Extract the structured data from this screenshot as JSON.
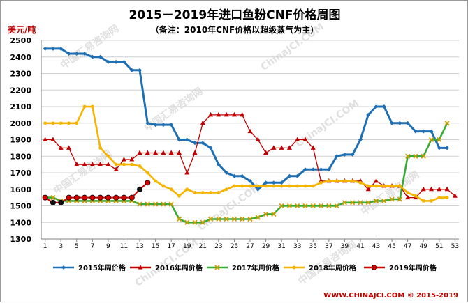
{
  "chart_data": {
    "type": "line",
    "title": "2015－2019年进口鱼粉CNF价格周图",
    "subtitle": "（备注：2010年CNF价格以超级蒸气为主）",
    "ylabel": "美元/吨",
    "ylim": [
      1300,
      2500
    ],
    "yticks": [
      "1300",
      "1400",
      "1500",
      "1600",
      "1700",
      "1800",
      "1900",
      "2000",
      "2100",
      "2200",
      "2300",
      "2400",
      "2500"
    ],
    "xlim": [
      0.5,
      53.5
    ],
    "xticks": [
      "1",
      "3",
      "5",
      "7",
      "9",
      "11",
      "13",
      "15",
      "17",
      "19",
      "21",
      "23",
      "25",
      "27",
      "29",
      "31",
      "33",
      "35",
      "37",
      "39",
      "41",
      "43",
      "45",
      "47",
      "49",
      "51",
      "53"
    ],
    "grid": true,
    "legend_position": "bottom",
    "series": [
      {
        "name": "2015年周价格",
        "color": "#1f6fb4",
        "marker": "diamond",
        "values": [
          2450,
          2450,
          2450,
          2420,
          2420,
          2420,
          2400,
          2400,
          2370,
          2370,
          2370,
          2320,
          2320,
          2000,
          1990,
          1990,
          1990,
          1900,
          1900,
          1880,
          1880,
          1850,
          1750,
          1700,
          1680,
          1680,
          1650,
          1600,
          1640,
          1640,
          1640,
          1680,
          1680,
          1720,
          1720,
          1720,
          1720,
          1800,
          1810,
          1810,
          1900,
          2050,
          2100,
          2100,
          2000,
          2000,
          2000,
          1950,
          1950,
          1950,
          1850,
          1850,
          null
        ]
      },
      {
        "name": "2016年周价格",
        "color": "#c00000",
        "marker": "triangle",
        "values": [
          1900,
          1900,
          1850,
          1850,
          1750,
          1750,
          1750,
          1750,
          1750,
          1720,
          1780,
          1780,
          1820,
          1820,
          1820,
          1820,
          1820,
          1820,
          1700,
          1820,
          2000,
          2050,
          2050,
          2050,
          2050,
          2050,
          1950,
          1900,
          1820,
          1850,
          1850,
          1850,
          1900,
          1900,
          1850,
          1650,
          1650,
          1650,
          1650,
          1650,
          1650,
          1600,
          1650,
          1620,
          1620,
          1620,
          1550,
          1550,
          1600,
          1600,
          1600,
          1600,
          1560
        ]
      },
      {
        "name": "2017年周价格",
        "color": "#3aaa35",
        "marker": "x",
        "values": [
          1550,
          1550,
          1530,
          1530,
          1530,
          1530,
          1530,
          1530,
          1530,
          1530,
          1530,
          1530,
          1510,
          1510,
          1510,
          1510,
          1510,
          1420,
          1400,
          1400,
          1400,
          1420,
          1420,
          1420,
          1420,
          1420,
          1420,
          1430,
          1450,
          1450,
          1500,
          1500,
          1500,
          1500,
          1500,
          1500,
          1500,
          1500,
          1520,
          1520,
          1520,
          1520,
          1530,
          1530,
          1540,
          1540,
          1800,
          1800,
          1800,
          1900,
          1900,
          2000,
          null
        ]
      },
      {
        "name": "2018年周价格",
        "color": "#f5b400",
        "marker": "circle",
        "values": [
          2000,
          2000,
          2000,
          2000,
          2000,
          2100,
          2100,
          1850,
          1800,
          1750,
          1750,
          1750,
          1740,
          1700,
          1650,
          1620,
          1600,
          1560,
          1600,
          1580,
          1580,
          1580,
          1580,
          1600,
          1620,
          1620,
          1620,
          1620,
          1620,
          1620,
          1620,
          1620,
          1620,
          1620,
          1620,
          1640,
          1650,
          1650,
          1650,
          1650,
          1640,
          1620,
          1620,
          1620,
          1620,
          1620,
          1580,
          1560,
          1530,
          1530,
          1550,
          1550,
          null
        ]
      },
      {
        "name": "2019年周价格",
        "color": "#d40000",
        "marker": "dot",
        "values": [
          1550,
          1520,
          1520,
          1550,
          1550,
          1550,
          1550,
          1550,
          1550,
          1550,
          1550,
          1550,
          1600,
          1640,
          null,
          null,
          null,
          null,
          null,
          null,
          null,
          null,
          null,
          null,
          null,
          null,
          null,
          null,
          null,
          null,
          null,
          null,
          null,
          null,
          null,
          null,
          null,
          null,
          null,
          null,
          null,
          null,
          null,
          null,
          null,
          null,
          null,
          null,
          null,
          null,
          null,
          null,
          null
        ]
      }
    ]
  },
  "watermarks": [
    "中国汇易咨询网",
    "ChinaJCI.COM"
  ],
  "footer": "WWW.CHINAJCI.COM © 2015-2019"
}
